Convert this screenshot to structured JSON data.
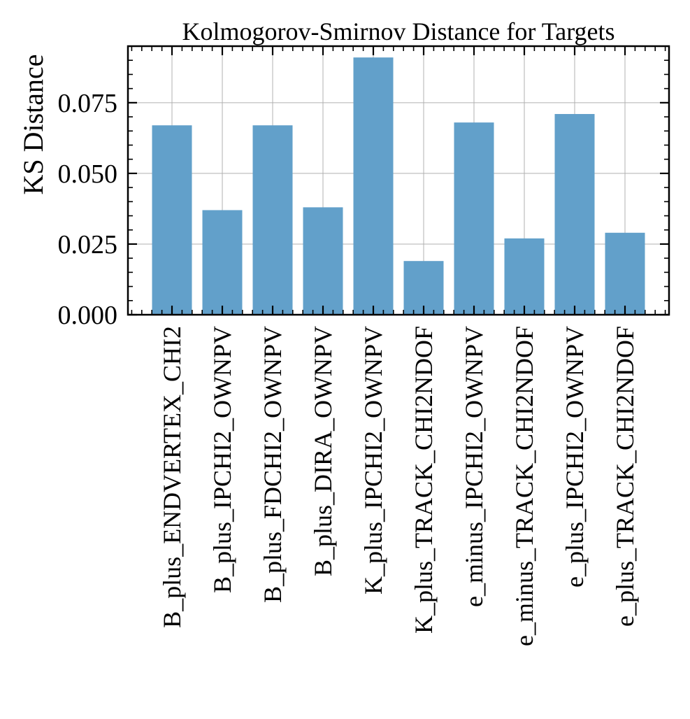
{
  "chart_data": {
    "type": "bar",
    "title": "Kolmogorov-Smirnov Distance for Targets",
    "xlabel": "",
    "ylabel": "KS Distance",
    "categories": [
      "B_plus_ENDVERTEX_CHI2",
      "B_plus_IPCHI2_OWNPV",
      "B_plus_FDCHI2_OWNPV",
      "B_plus_DIRA_OWNPV",
      "K_plus_IPCHI2_OWNPV",
      "K_plus_TRACK_CHI2NDOF",
      "e_minus_IPCHI2_OWNPV",
      "e_minus_TRACK_CHI2NDOF",
      "e_plus_IPCHI2_OWNPV",
      "e_plus_TRACK_CHI2NDOF"
    ],
    "values": [
      0.067,
      0.037,
      0.067,
      0.038,
      0.091,
      0.019,
      0.068,
      0.027,
      0.071,
      0.029
    ],
    "ylim": [
      0,
      0.095
    ],
    "yticks": [
      0,
      0.025,
      0.05,
      0.075
    ],
    "ytick_labels": [
      "0.000",
      "0.025",
      "0.050",
      "0.075"
    ],
    "grid": true,
    "legend": "none",
    "bar_color": "#62a0ca"
  }
}
